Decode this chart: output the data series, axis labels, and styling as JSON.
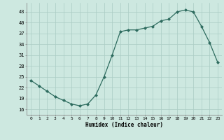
{
  "x": [
    0,
    1,
    2,
    3,
    4,
    5,
    6,
    7,
    8,
    9,
    10,
    11,
    12,
    13,
    14,
    15,
    16,
    17,
    18,
    19,
    20,
    21,
    22,
    23
  ],
  "y": [
    24,
    22.5,
    21,
    19.5,
    18.5,
    17.5,
    17,
    17.5,
    20,
    25,
    31,
    37.5,
    38,
    38,
    38.5,
    39,
    40.5,
    41,
    43,
    43.5,
    43,
    39,
    34.5,
    29
  ],
  "line_color": "#2d6b5e",
  "marker_color": "#2d6b5e",
  "bg_color": "#cde8e0",
  "grid_color": "#aaccc4",
  "xlabel": "Humidex (Indice chaleur)",
  "yticks": [
    16,
    19,
    22,
    25,
    28,
    31,
    34,
    37,
    40,
    43
  ],
  "xticks": [
    0,
    1,
    2,
    3,
    4,
    5,
    6,
    7,
    8,
    9,
    10,
    11,
    12,
    13,
    14,
    15,
    16,
    17,
    18,
    19,
    20,
    21,
    22,
    23
  ],
  "ylim": [
    14.5,
    45.5
  ],
  "xlim": [
    -0.5,
    23.5
  ]
}
